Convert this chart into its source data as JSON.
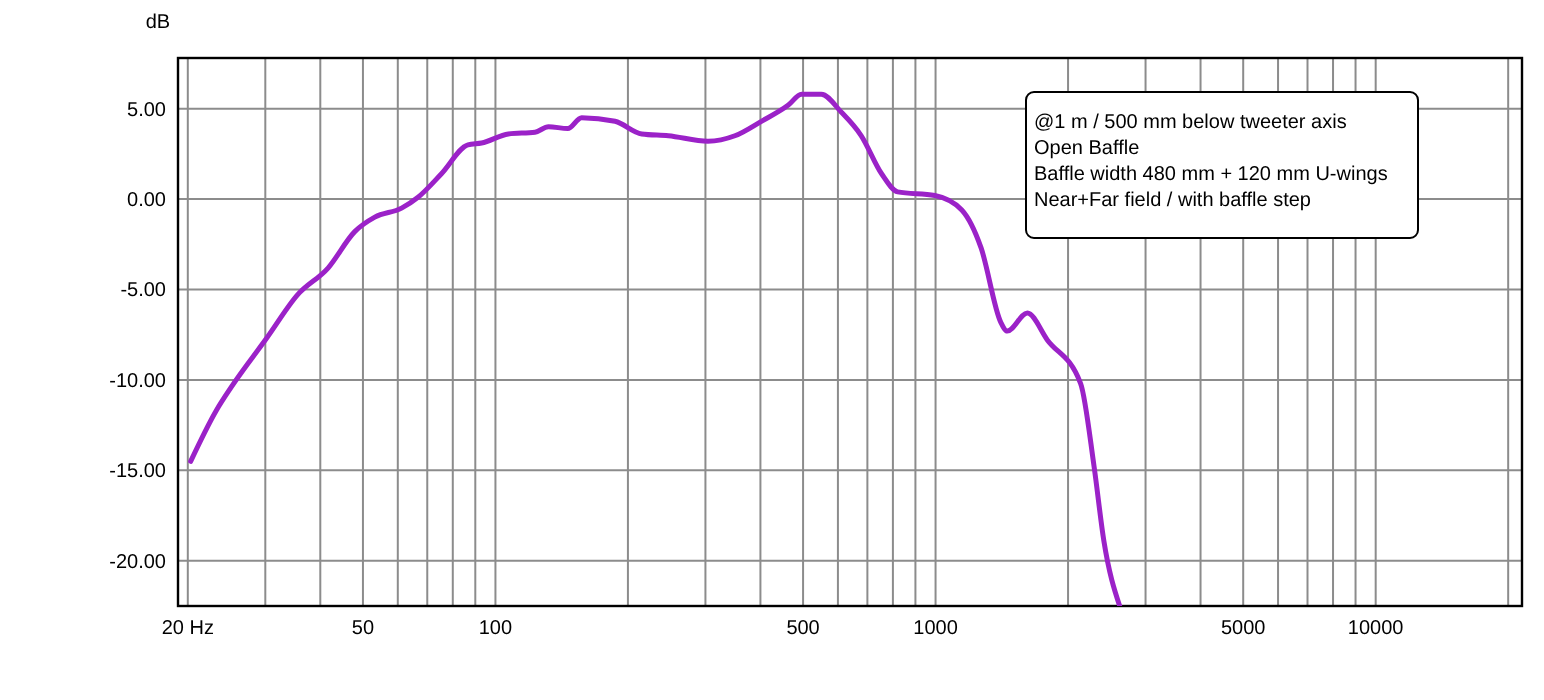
{
  "chart_data": {
    "type": "line",
    "ylabel": "dB",
    "log": "x",
    "grid": true,
    "line_style": "solid",
    "xlim": [
      19,
      21500
    ],
    "ylim": [
      -22.5,
      7.8
    ],
    "xticks": [
      {
        "value": 20,
        "label": "20 Hz"
      },
      50,
      100,
      500,
      1000,
      5000,
      10000
    ],
    "yticks": [
      {
        "value": 5,
        "label": "5.00"
      },
      {
        "value": 0,
        "label": "0.00"
      },
      {
        "value": -5,
        "label": "-5.00"
      },
      {
        "value": -10,
        "label": "-10.00"
      },
      {
        "value": -15,
        "label": "-15.00"
      },
      {
        "value": -20,
        "label": "-20.00"
      }
    ],
    "annotations": [
      "@1 m / 500 mm below tweeter axis",
      "Open Baffle",
      "Baffle width 480 mm + 120 mm U-wings",
      "Near+Far field / with baffle step"
    ],
    "series": [
      {
        "color": "#9b22c8",
        "x": [
          20.3,
          23.2,
          25.1,
          30.2,
          35.5,
          41.7,
          47.9,
          53.2,
          61.2,
          66.7,
          75.4,
          86.6,
          93,
          107,
          123,
          132,
          146,
          157,
          187,
          215,
          247,
          304,
          350,
          402,
          463,
          496,
          550,
          611,
          678,
          754,
          820,
          996,
          1147,
          1269,
          1406,
          1455,
          1617,
          1796,
          2136,
          2292,
          2412,
          2620
        ],
        "values": [
          -14.5,
          -11.7,
          -10.4,
          -7.7,
          -5.3,
          -3.8,
          -1.8,
          -1.0,
          -0.5,
          0.1,
          1.4,
          3.0,
          3.1,
          3.6,
          3.7,
          4.0,
          3.9,
          4.5,
          4.3,
          3.6,
          3.5,
          3.2,
          3.5,
          4.3,
          5.2,
          5.8,
          5.8,
          4.8,
          3.5,
          1.4,
          0.4,
          0.2,
          -0.6,
          -2.7,
          -6.8,
          -7.3,
          -6.3,
          -7.8,
          -10.2,
          -14.8,
          -18.9,
          -22.5
        ]
      }
    ]
  }
}
